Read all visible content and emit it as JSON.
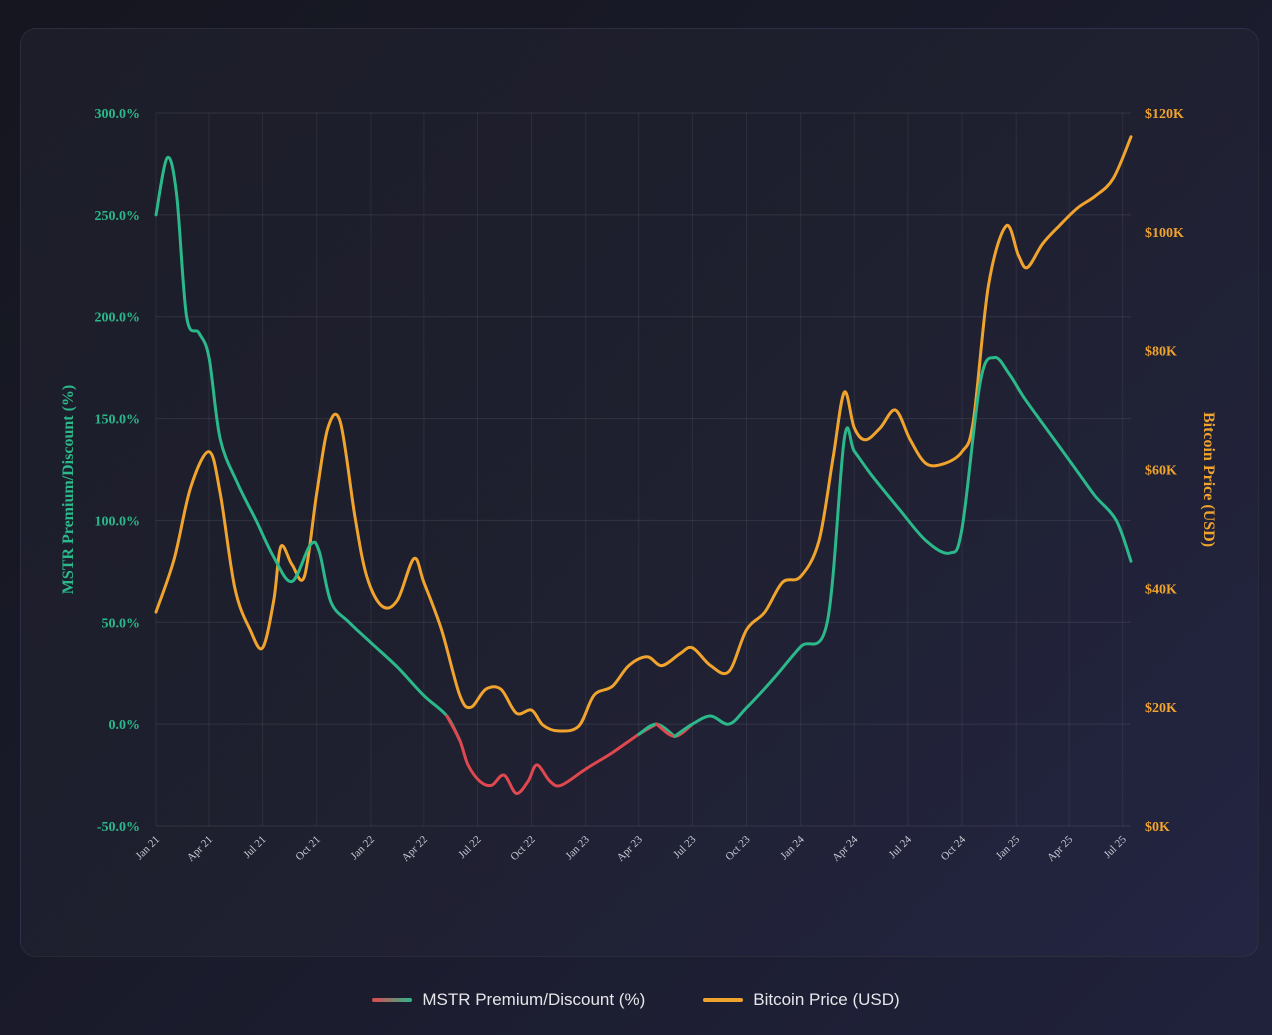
{
  "chart_data": {
    "type": "line",
    "left_axis": {
      "label": "MSTR Premium/Discount (%)",
      "range": [
        -50,
        300
      ],
      "ticks": [
        "-50.0%",
        "0.0%",
        "50.0%",
        "100.0%",
        "150.0%",
        "200.0%",
        "250.0%",
        "300.0%"
      ],
      "color": "#2bb88a"
    },
    "right_axis": {
      "label": "Bitcoin Price (USD)",
      "range": [
        0,
        120000
      ],
      "ticks": [
        "$0K",
        "$20K",
        "$40K",
        "$60K",
        "$80K",
        "$100K",
        "$120K"
      ],
      "color": "#f0a42e"
    },
    "x_ticks": [
      "Jan 21",
      "Apr 21",
      "Jul 21",
      "Oct 21",
      "Jan 22",
      "Apr 22",
      "Jul 22",
      "Oct 22",
      "Jan 23",
      "Apr 23",
      "Jul 23",
      "Oct 23",
      "Jan 24",
      "Apr 24",
      "Jul 24",
      "Oct 24",
      "Jan 25",
      "Apr 25",
      "Jul 25"
    ],
    "x_range": [
      "2021-01-01",
      "2025-07-15"
    ],
    "grid": true,
    "legend_position": "bottom-center",
    "series": [
      {
        "name": "MSTR Premium/Discount (%)",
        "axis": "left",
        "color": "#2bb88a",
        "negative_color": "#e0484f",
        "points": [
          [
            "2021-01-01",
            250
          ],
          [
            "2021-01-20",
            278
          ],
          [
            "2021-02-05",
            260
          ],
          [
            "2021-02-22",
            200
          ],
          [
            "2021-03-15",
            192
          ],
          [
            "2021-04-01",
            180
          ],
          [
            "2021-04-20",
            140
          ],
          [
            "2021-05-20",
            118
          ],
          [
            "2021-06-20",
            100
          ],
          [
            "2021-07-20",
            82
          ],
          [
            "2021-08-20",
            70
          ],
          [
            "2021-09-20",
            88
          ],
          [
            "2021-10-05",
            85
          ],
          [
            "2021-10-25",
            60
          ],
          [
            "2021-11-25",
            50
          ],
          [
            "2022-01-01",
            40
          ],
          [
            "2022-02-15",
            28
          ],
          [
            "2022-04-01",
            14
          ],
          [
            "2022-05-10",
            4
          ],
          [
            "2022-06-01",
            -8
          ],
          [
            "2022-06-15",
            -20
          ],
          [
            "2022-07-05",
            -28
          ],
          [
            "2022-07-25",
            -30
          ],
          [
            "2022-08-15",
            -25
          ],
          [
            "2022-09-05",
            -34
          ],
          [
            "2022-09-25",
            -28
          ],
          [
            "2022-10-10",
            -20
          ],
          [
            "2022-11-01",
            -28
          ],
          [
            "2022-11-20",
            -30
          ],
          [
            "2023-01-01",
            -22
          ],
          [
            "2023-02-15",
            -14
          ],
          [
            "2023-04-01",
            -5
          ],
          [
            "2023-05-01",
            0
          ],
          [
            "2023-06-01",
            -6
          ],
          [
            "2023-07-01",
            0
          ],
          [
            "2023-08-01",
            4
          ],
          [
            "2023-09-01",
            0
          ],
          [
            "2023-10-01",
            8
          ],
          [
            "2023-11-15",
            22
          ],
          [
            "2024-01-01",
            38
          ],
          [
            "2024-02-15",
            50
          ],
          [
            "2024-03-15",
            140
          ],
          [
            "2024-04-01",
            134
          ],
          [
            "2024-05-01",
            122
          ],
          [
            "2024-06-15",
            106
          ],
          [
            "2024-08-01",
            90
          ],
          [
            "2024-09-10",
            84
          ],
          [
            "2024-10-01",
            96
          ],
          [
            "2024-11-01",
            168
          ],
          [
            "2024-11-25",
            180
          ],
          [
            "2024-12-20",
            172
          ],
          [
            "2025-01-15",
            160
          ],
          [
            "2025-03-01",
            142
          ],
          [
            "2025-04-15",
            124
          ],
          [
            "2025-05-15",
            112
          ],
          [
            "2025-06-20",
            100
          ],
          [
            "2025-07-15",
            80
          ]
        ]
      },
      {
        "name": "Bitcoin Price (USD)",
        "axis": "right",
        "color": "#f0a42e",
        "points": [
          [
            "2021-01-01",
            36000
          ],
          [
            "2021-02-01",
            45000
          ],
          [
            "2021-03-01",
            57000
          ],
          [
            "2021-04-01",
            63000
          ],
          [
            "2021-04-20",
            56000
          ],
          [
            "2021-05-15",
            40000
          ],
          [
            "2021-06-10",
            33000
          ],
          [
            "2021-07-01",
            30000
          ],
          [
            "2021-07-20",
            38000
          ],
          [
            "2021-08-01",
            47000
          ],
          [
            "2021-08-20",
            44000
          ],
          [
            "2021-09-10",
            42000
          ],
          [
            "2021-10-01",
            56000
          ],
          [
            "2021-10-20",
            67000
          ],
          [
            "2021-11-10",
            68000
          ],
          [
            "2021-12-05",
            52000
          ],
          [
            "2021-12-25",
            42000
          ],
          [
            "2022-01-20",
            37000
          ],
          [
            "2022-02-15",
            38000
          ],
          [
            "2022-03-15",
            45000
          ],
          [
            "2022-04-01",
            41000
          ],
          [
            "2022-05-01",
            33000
          ],
          [
            "2022-06-01",
            22000
          ],
          [
            "2022-06-20",
            20000
          ],
          [
            "2022-07-15",
            23000
          ],
          [
            "2022-08-10",
            23000
          ],
          [
            "2022-09-05",
            19000
          ],
          [
            "2022-10-01",
            19500
          ],
          [
            "2022-10-20",
            17000
          ],
          [
            "2022-11-15",
            16000
          ],
          [
            "2022-12-20",
            16800
          ],
          [
            "2023-01-15",
            22000
          ],
          [
            "2023-02-15",
            23500
          ],
          [
            "2023-03-15",
            27000
          ],
          [
            "2023-04-15",
            28500
          ],
          [
            "2023-05-10",
            27000
          ],
          [
            "2023-06-10",
            29000
          ],
          [
            "2023-07-01",
            30000
          ],
          [
            "2023-08-01",
            27000
          ],
          [
            "2023-09-01",
            26000
          ],
          [
            "2023-10-01",
            33000
          ],
          [
            "2023-11-01",
            36000
          ],
          [
            "2023-12-01",
            41000
          ],
          [
            "2024-01-01",
            42000
          ],
          [
            "2024-02-01",
            48000
          ],
          [
            "2024-02-25",
            62000
          ],
          [
            "2024-03-15",
            73000
          ],
          [
            "2024-04-01",
            67000
          ],
          [
            "2024-04-20",
            65000
          ],
          [
            "2024-05-15",
            67000
          ],
          [
            "2024-06-10",
            70000
          ],
          [
            "2024-07-05",
            65000
          ],
          [
            "2024-08-01",
            61000
          ],
          [
            "2024-09-01",
            61000
          ],
          [
            "2024-10-01",
            63000
          ],
          [
            "2024-10-20",
            68000
          ],
          [
            "2024-11-15",
            91000
          ],
          [
            "2024-12-15",
            101000
          ],
          [
            "2025-01-05",
            96000
          ],
          [
            "2025-01-20",
            94000
          ],
          [
            "2025-02-15",
            98000
          ],
          [
            "2025-03-15",
            101000
          ],
          [
            "2025-04-15",
            104000
          ],
          [
            "2025-05-15",
            106000
          ],
          [
            "2025-06-15",
            109000
          ],
          [
            "2025-07-15",
            116000
          ]
        ]
      }
    ]
  }
}
